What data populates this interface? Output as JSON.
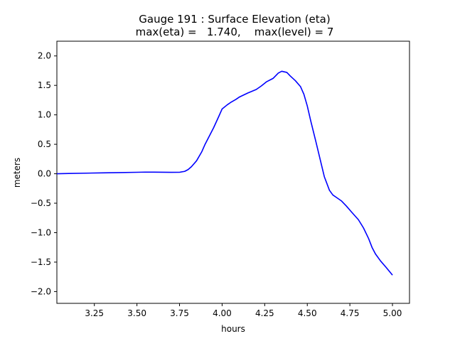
{
  "chart_data": {
    "type": "line",
    "title": "Gauge 191 : Surface Elevation (eta)",
    "subtitle": "max(eta) =   1.740,    max(level) = 7",
    "xlabel": "hours",
    "ylabel": "meters",
    "xlim": [
      3.03,
      5.1
    ],
    "ylim": [
      -2.2,
      2.25
    ],
    "xticks": [
      3.25,
      3.5,
      3.75,
      4.0,
      4.25,
      4.5,
      4.75,
      5.0
    ],
    "xtick_labels": [
      "3.25",
      "3.50",
      "3.75",
      "4.00",
      "4.25",
      "4.50",
      "4.75",
      "5.00"
    ],
    "yticks": [
      2.0,
      1.5,
      1.0,
      0.5,
      0.0,
      -0.5,
      -1.0,
      -1.5,
      -2.0
    ],
    "ytick_labels": [
      "2.0",
      "1.5",
      "1.0",
      "0.5",
      "0.0",
      "−0.5",
      "−1.0",
      "−1.5",
      "−2.0"
    ],
    "grid": false,
    "series": [
      {
        "color": "#0000ff",
        "x": [
          3.03,
          3.1,
          3.2,
          3.3,
          3.4,
          3.5,
          3.55,
          3.6,
          3.7,
          3.75,
          3.78,
          3.8,
          3.82,
          3.85,
          3.88,
          3.9,
          3.95,
          3.98,
          4.0,
          4.03,
          4.05,
          4.08,
          4.1,
          4.15,
          4.2,
          4.23,
          4.26,
          4.3,
          4.33,
          4.35,
          4.38,
          4.4,
          4.43,
          4.46,
          4.48,
          4.5,
          4.52,
          4.55,
          4.6,
          4.63,
          4.65,
          4.67,
          4.7,
          4.73,
          4.76,
          4.8,
          4.83,
          4.86,
          4.88,
          4.9,
          4.93,
          4.96,
          5.0
        ],
        "y": [
          0.0,
          0.005,
          0.01,
          0.015,
          0.02,
          0.025,
          0.028,
          0.027,
          0.024,
          0.025,
          0.04,
          0.07,
          0.12,
          0.22,
          0.37,
          0.5,
          0.78,
          0.97,
          1.1,
          1.17,
          1.21,
          1.26,
          1.3,
          1.37,
          1.43,
          1.49,
          1.56,
          1.62,
          1.71,
          1.74,
          1.72,
          1.66,
          1.58,
          1.48,
          1.35,
          1.15,
          0.9,
          0.55,
          -0.05,
          -0.28,
          -0.36,
          -0.4,
          -0.46,
          -0.55,
          -0.65,
          -0.78,
          -0.92,
          -1.1,
          -1.25,
          -1.36,
          -1.48,
          -1.58,
          -1.72
        ]
      }
    ]
  }
}
